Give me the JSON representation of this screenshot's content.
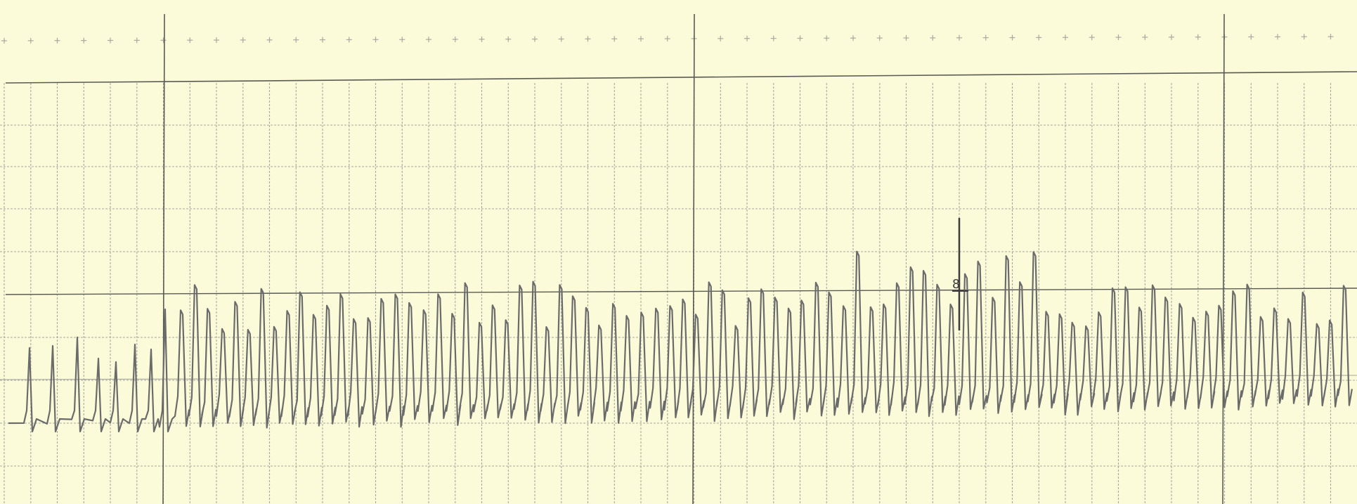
{
  "strip": {
    "kind": "ECG rhythm strip",
    "paper_color": "#fbfbd9",
    "grid_color": "#a9a8a0",
    "major_line_color": "#5a5a55",
    "trace_color": "#6b6b6b",
    "marker_label": "8"
  }
}
